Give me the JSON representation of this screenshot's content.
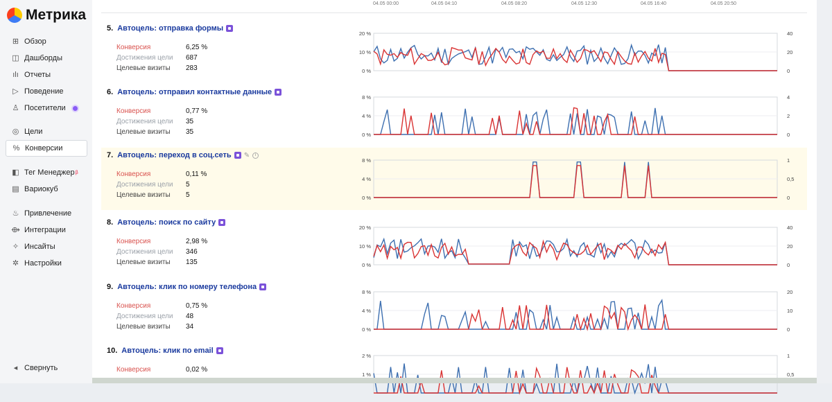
{
  "app": {
    "title": "Метрика"
  },
  "sidebar": {
    "items": [
      {
        "label": "Обзор",
        "icon": "grid-icon"
      },
      {
        "label": "Дашборды",
        "icon": "dashboard-icon"
      },
      {
        "label": "Отчеты",
        "icon": "bar-chart-icon"
      },
      {
        "label": "Поведение",
        "icon": "play-icon"
      },
      {
        "label": "Посетители",
        "icon": "user-icon"
      },
      {
        "label": "Цели",
        "icon": "target-icon"
      },
      {
        "label": "Конверсии",
        "icon": "percent-icon",
        "active": true
      },
      {
        "label": "Тег Менеджер",
        "icon": "tag-icon",
        "sup": "β"
      },
      {
        "label": "Вариокуб",
        "icon": "cube-icon"
      },
      {
        "label": "Привлечение",
        "icon": "flame-icon"
      },
      {
        "label": "Интеграции",
        "icon": "puzzle-icon"
      },
      {
        "label": "Инсайты",
        "icon": "sparkle-icon"
      },
      {
        "label": "Настройки",
        "icon": "gear-icon"
      }
    ],
    "collapse_label": "Свернуть"
  },
  "time_axis": [
    "04.05 00:00",
    "04.05 04:10",
    "04.05 08:20",
    "04.05 12:30",
    "04.05 16:40",
    "04.05 20:50"
  ],
  "metric_labels": {
    "conversion": "Конверсия",
    "reached": "Достижения цели",
    "visits": "Целевые визиты"
  },
  "colors": {
    "conversion": "#d93333",
    "visits": "#3d6fb0",
    "link": "#1a3a9e",
    "badge": "#7b52d9"
  },
  "goals": [
    {
      "num": "5.",
      "title": "Автоцель: отправка формы",
      "conversion": "6,25 %",
      "reached": "687",
      "visits": "283",
      "left_ticks": [
        "20 %",
        "10 %",
        "0 %"
      ],
      "right_ticks": [
        "40",
        "20",
        "0"
      ]
    },
    {
      "num": "6.",
      "title": "Автоцель: отправил контактные данные",
      "conversion": "0,77 %",
      "reached": "35",
      "visits": "35",
      "left_ticks": [
        "8 %",
        "4 %",
        "0 %"
      ],
      "right_ticks": [
        "4",
        "2",
        "0"
      ]
    },
    {
      "num": "7.",
      "title": "Автоцель: переход в соц.сеть",
      "conversion": "0,11 %",
      "reached": "5",
      "visits": "5",
      "left_ticks": [
        "8 %",
        "4 %",
        "0 %"
      ],
      "right_ticks": [
        "1",
        "0,5",
        "0"
      ],
      "highlight": true
    },
    {
      "num": "8.",
      "title": "Автоцель: поиск по сайту",
      "conversion": "2,98 %",
      "reached": "346",
      "visits": "135",
      "left_ticks": [
        "20 %",
        "10 %",
        "0 %"
      ],
      "right_ticks": [
        "40",
        "20",
        "0"
      ]
    },
    {
      "num": "9.",
      "title": "Автоцель: клик по номеру телефона",
      "conversion": "0,75 %",
      "reached": "48",
      "visits": "34",
      "left_ticks": [
        "8 %",
        "4 %",
        "0 %"
      ],
      "right_ticks": [
        "20",
        "10",
        "0"
      ]
    },
    {
      "num": "10.",
      "title": "Автоцель: клик по email",
      "conversion": "0,02 %",
      "left_ticks": [
        "2 %",
        "1 %"
      ],
      "right_ticks": [
        "1",
        "0,5"
      ]
    }
  ]
}
